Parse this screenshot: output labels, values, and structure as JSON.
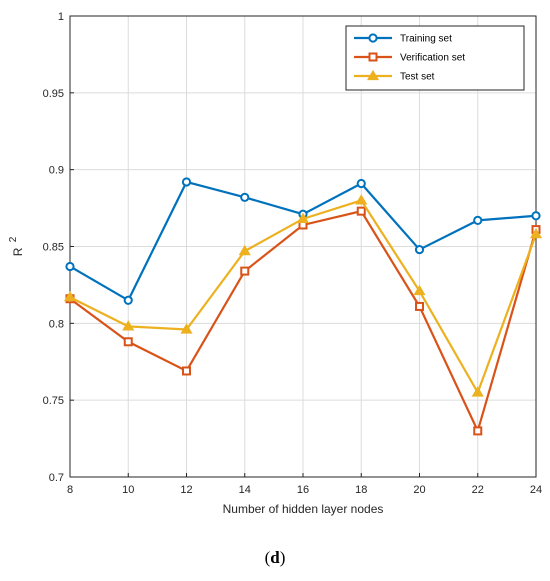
{
  "caption": {
    "open": "(",
    "letter": "d",
    "close": ")"
  },
  "chart_data": {
    "type": "line",
    "title": "",
    "xlabel": "Number of hidden layer nodes",
    "ylabel": "R",
    "ylabel_sup": "2",
    "x": [
      8,
      10,
      12,
      14,
      16,
      18,
      20,
      22,
      24
    ],
    "xlim": [
      8,
      24
    ],
    "ylim": [
      0.7,
      1
    ],
    "xticks": [
      "8",
      "10",
      "12",
      "14",
      "16",
      "18",
      "20",
      "22",
      "24"
    ],
    "yticks": [
      0.7,
      0.75,
      0.8,
      0.85,
      0.9,
      0.95,
      1
    ],
    "yticklabels": [
      "0.7",
      "0.75",
      "0.8",
      "0.85",
      "0.9",
      "0.95",
      "1"
    ],
    "grid": true,
    "legend_position": "top-right",
    "series": [
      {
        "name": "Training set",
        "color": "#0072BD",
        "marker": "circle",
        "values": [
          0.837,
          0.815,
          0.892,
          0.882,
          0.871,
          0.891,
          0.848,
          0.867,
          0.87
        ]
      },
      {
        "name": "Verification set",
        "color": "#D95319",
        "marker": "square",
        "values": [
          0.816,
          0.788,
          0.769,
          0.834,
          0.864,
          0.873,
          0.811,
          0.73,
          0.861
        ]
      },
      {
        "name": "Test set",
        "color": "#EDB120",
        "marker": "triangle",
        "values": [
          0.817,
          0.798,
          0.796,
          0.847,
          0.868,
          0.88,
          0.821,
          0.755,
          0.858
        ]
      }
    ]
  }
}
